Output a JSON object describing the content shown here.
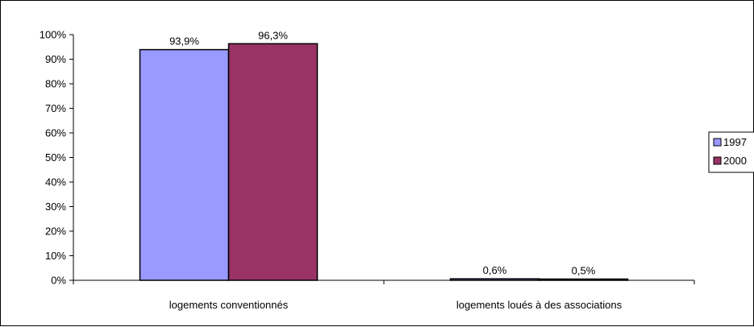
{
  "chart_data": {
    "type": "bar",
    "title": "",
    "xlabel": "",
    "ylabel": "",
    "categories": [
      "logements conventionnés",
      "logements loués à des associations"
    ],
    "series": [
      {
        "name": "1997",
        "values": [
          93.9,
          0.6
        ],
        "labels": [
          "93,9%",
          "0,6%"
        ],
        "color": "#9999ff"
      },
      {
        "name": "2000",
        "values": [
          96.3,
          0.5
        ],
        "labels": [
          "96,3%",
          "0,5%"
        ],
        "color": "#993366"
      }
    ],
    "ylim": [
      0,
      100
    ],
    "yticks": [
      0,
      10,
      20,
      30,
      40,
      50,
      60,
      70,
      80,
      90,
      100
    ],
    "ytick_labels": [
      "0%",
      "10%",
      "20%",
      "30%",
      "40%",
      "50%",
      "60%",
      "70%",
      "80%",
      "90%",
      "100%"
    ],
    "grid": false,
    "legend_position": "right"
  }
}
